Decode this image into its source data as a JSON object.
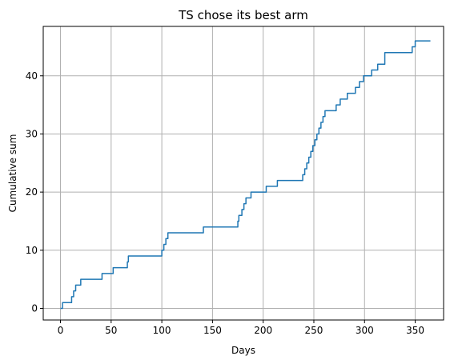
{
  "chart_data": {
    "type": "line",
    "title": "TS chose its best arm",
    "xlabel": "Days",
    "ylabel": "Cumulative sum",
    "xlim": [
      -17,
      378
    ],
    "ylim": [
      -2,
      48.5
    ],
    "xticks": [
      0,
      50,
      100,
      150,
      200,
      250,
      300,
      350
    ],
    "yticks": [
      0,
      10,
      20,
      30,
      40
    ],
    "grid": true,
    "step": "post",
    "colors": {
      "series": "#1f77b4"
    },
    "series": [
      {
        "x": [
          0,
          2,
          11,
          13,
          15,
          20,
          41,
          52,
          66,
          67,
          100,
          102,
          104,
          106,
          109,
          141,
          175,
          176,
          179,
          181,
          183,
          188,
          203,
          214,
          239,
          241,
          243,
          245,
          247,
          249,
          251,
          253,
          255,
          257,
          259,
          261,
          272,
          276,
          283,
          291,
          295,
          299,
          307,
          313,
          320,
          347,
          350,
          365
        ],
        "y": [
          0,
          1,
          2,
          3,
          4,
          5,
          6,
          7,
          8,
          9,
          10,
          11,
          12,
          13,
          13,
          14,
          15,
          16,
          17,
          18,
          19,
          20,
          21,
          22,
          23,
          24,
          25,
          26,
          27,
          28,
          29,
          30,
          31,
          32,
          33,
          34,
          35,
          36,
          37,
          38,
          39,
          40,
          41,
          42,
          44,
          45,
          46,
          46
        ]
      }
    ]
  }
}
